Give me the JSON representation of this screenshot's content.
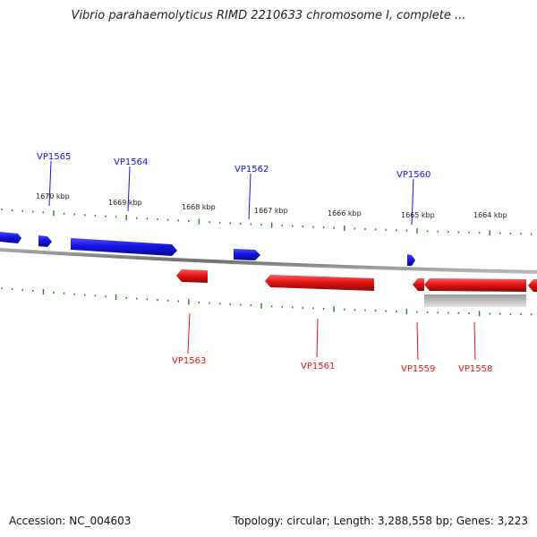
{
  "title": "Vibrio parahaemolyticus RIMD 2210633 chromosome I, complete ...",
  "footer": {
    "accession": "Accession: NC_004603",
    "summary": "Topology: circular; Length: 3,288,558 bp; Genes: 3,223"
  },
  "colors": {
    "forward": "#1414e6",
    "reverse": "#e61414",
    "backbone": "#808080",
    "ticks": "#2a8a2a",
    "selection": "#bdbdbd"
  },
  "ticks": [
    "1670 kbp",
    "1669 kbp",
    "1668 kbp",
    "1667 kbp",
    "1666 kbp",
    "1665 kbp",
    "1664 kbp"
  ],
  "genes": [
    {
      "id": "VP1565",
      "strand": "+",
      "labeled": true
    },
    {
      "id": "VP1564",
      "strand": "+",
      "labeled": true
    },
    {
      "id": "VP1562",
      "strand": "+",
      "labeled": true
    },
    {
      "id": "VP1560",
      "strand": "+",
      "labeled": true
    },
    {
      "id": "VP1563",
      "strand": "-",
      "labeled": true
    },
    {
      "id": "VP1561",
      "strand": "-",
      "labeled": true
    },
    {
      "id": "VP1559",
      "strand": "-",
      "labeled": true
    },
    {
      "id": "VP1558",
      "strand": "-",
      "labeled": true
    }
  ]
}
